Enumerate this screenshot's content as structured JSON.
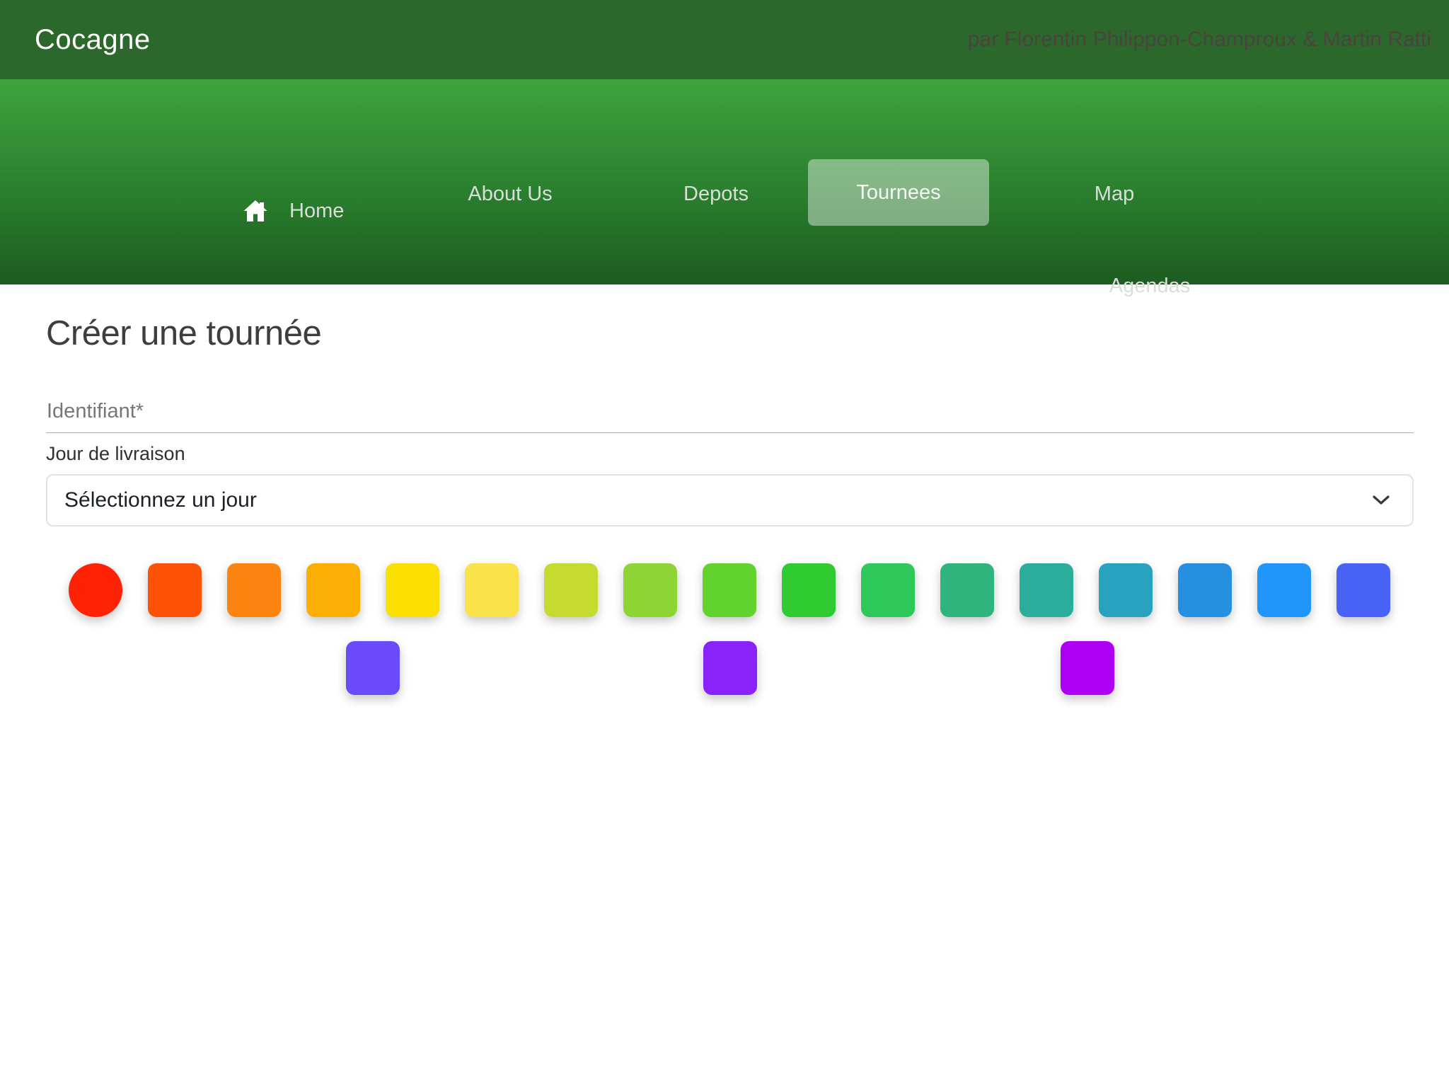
{
  "topbar": {
    "brand": "Cocagne",
    "credit": "par Florentin Philippon-Champroux & Martin Ratti"
  },
  "nav": {
    "items": [
      {
        "label": "Home",
        "icon": "home-icon",
        "active": false
      },
      {
        "label": "About Us",
        "active": false
      },
      {
        "label": "Depots",
        "active": false
      },
      {
        "label": "Tournees",
        "active": true
      },
      {
        "label": "Map",
        "active": false
      },
      {
        "label": "Agendas",
        "active": false
      }
    ]
  },
  "page": {
    "title": "Créer une tournée",
    "identifiant": {
      "placeholder": "Identifiant*",
      "value": ""
    },
    "jour_label": "Jour de livraison",
    "jour_select": {
      "value": "Sélectionnez un jour",
      "icon": "chevron-down-icon"
    }
  },
  "palette": {
    "selected_index": 0,
    "row1": [
      "#FE2206",
      "#FD5306",
      "#FC8511",
      "#FBAE04",
      "#FAE103",
      "#FAE24A",
      "#C6DB30",
      "#8FD435",
      "#62D22E",
      "#2FCB30",
      "#2EC75A",
      "#2FB47D",
      "#2BAD9C",
      "#29A2C0",
      "#268FE0",
      "#2196FA",
      "#4A63F7"
    ],
    "row2": [
      "#6A4BFA",
      "#8A23FA",
      "#AD00F2"
    ]
  },
  "colors": {
    "topbar_bg": "#2c682b",
    "nav_gradient_top": "#3fa33e",
    "nav_gradient_bottom": "#1c5c20",
    "nav_link": "#d9ded9",
    "active_item_bg": "rgba(255,255,255,0.42)"
  }
}
